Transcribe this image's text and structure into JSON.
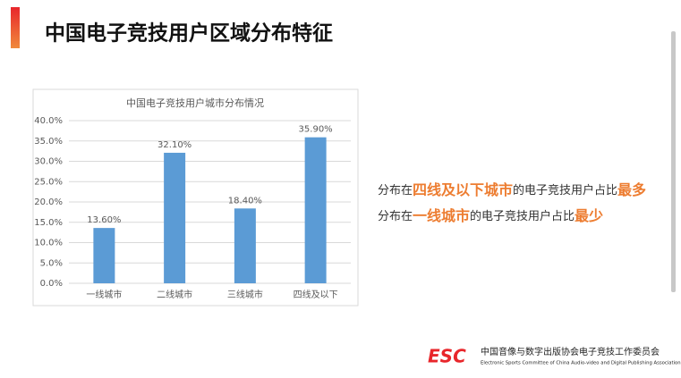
{
  "header": {
    "title": "中国电子竞技用户区域分布特征"
  },
  "chart_data": {
    "type": "bar",
    "title": "中国电子竞技用户城市分布情况",
    "categories": [
      "一线城市",
      "二线城市",
      "三线城市",
      "四线及以下"
    ],
    "values": [
      13.6,
      32.1,
      18.4,
      35.9
    ],
    "value_labels": [
      "13.60%",
      "32.10%",
      "18.40%",
      "35.90%"
    ],
    "color": "#5b9bd5",
    "ylim": [
      0,
      40
    ],
    "yticks": [
      {
        "value": 0,
        "label": "0.0%"
      },
      {
        "value": 5,
        "label": "5.0%"
      },
      {
        "value": 10,
        "label": "10.0%"
      },
      {
        "value": 15,
        "label": "15.0%"
      },
      {
        "value": 20,
        "label": "20.0%"
      },
      {
        "value": 25,
        "label": "25.0%"
      },
      {
        "value": 30,
        "label": "30.0%"
      },
      {
        "value": 35,
        "label": "35.0%"
      },
      {
        "value": 40,
        "label": "40.0%"
      }
    ],
    "grid": true
  },
  "notes": [
    [
      "分布在",
      "四线及以下城市",
      "的电子竞技用户占比",
      "最多"
    ],
    [
      "分布在",
      "一线城市",
      "的电子竞技用户占比",
      "最少"
    ]
  ],
  "footer": {
    "logo": "ESC",
    "org": "中国音像与数字出版协会电子竞技工作委员会",
    "org_en": "Electronic Sports Committee of China Audio-video and Digital Publishing Association"
  }
}
